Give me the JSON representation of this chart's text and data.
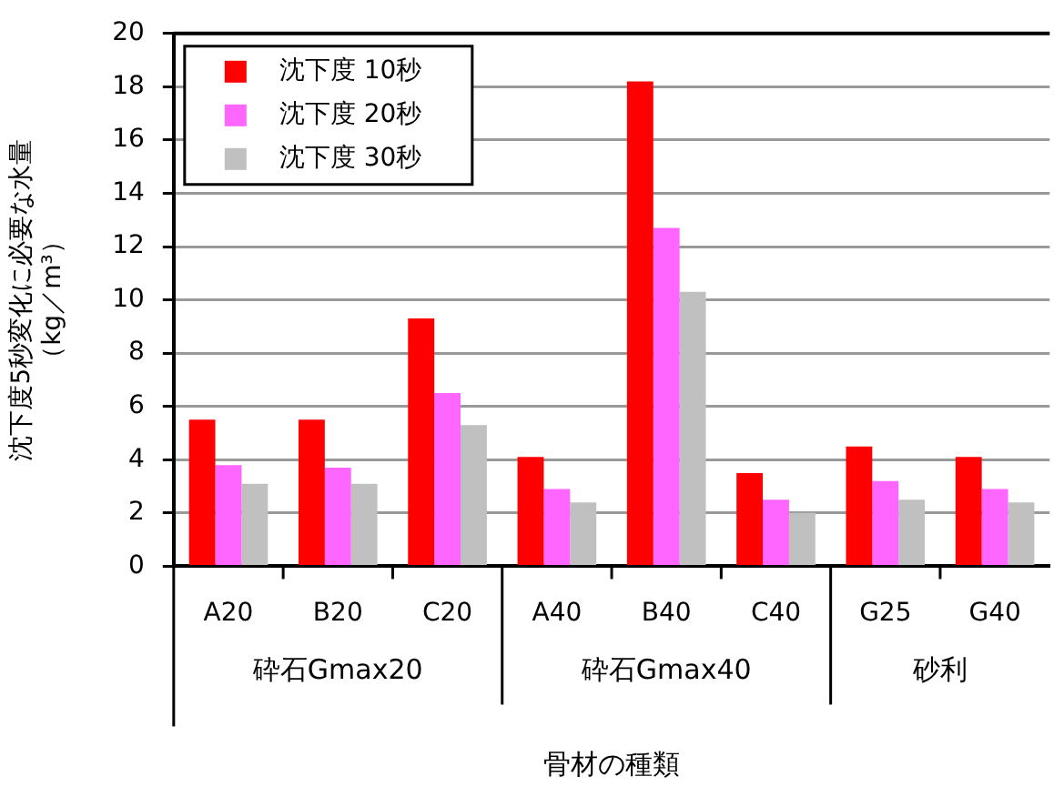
{
  "chart_data": {
    "type": "bar",
    "ylabel": "沈下度5秒変化に必要な水量（kg／m³）",
    "xlabel": "骨材の種類",
    "categories": [
      "A20",
      "B20",
      "C20",
      "A40",
      "B40",
      "C40",
      "G25",
      "G40"
    ],
    "series": [
      {
        "name": "沈下度 10秒",
        "color": "#ff0000",
        "values": [
          5.5,
          5.5,
          9.3,
          4.1,
          18.2,
          3.5,
          4.5,
          4.1
        ]
      },
      {
        "name": "沈下度 20秒",
        "color": "#ff66ff",
        "values": [
          3.8,
          3.7,
          6.5,
          2.9,
          12.7,
          2.5,
          3.2,
          2.9
        ]
      },
      {
        "name": "沈下度 30秒",
        "color": "#c0c0c0",
        "values": [
          3.1,
          3.1,
          5.3,
          2.4,
          10.3,
          2.0,
          2.5,
          2.4
        ]
      }
    ],
    "annotations": [
      "砕石Gmax20",
      "砕石Gmax40",
      "砂利"
    ],
    "ylim": [
      0,
      20
    ],
    "yticks": [
      0,
      2,
      4,
      6,
      8,
      10,
      12,
      14,
      16,
      18,
      20
    ],
    "grid": "y",
    "legend": "top left"
  }
}
